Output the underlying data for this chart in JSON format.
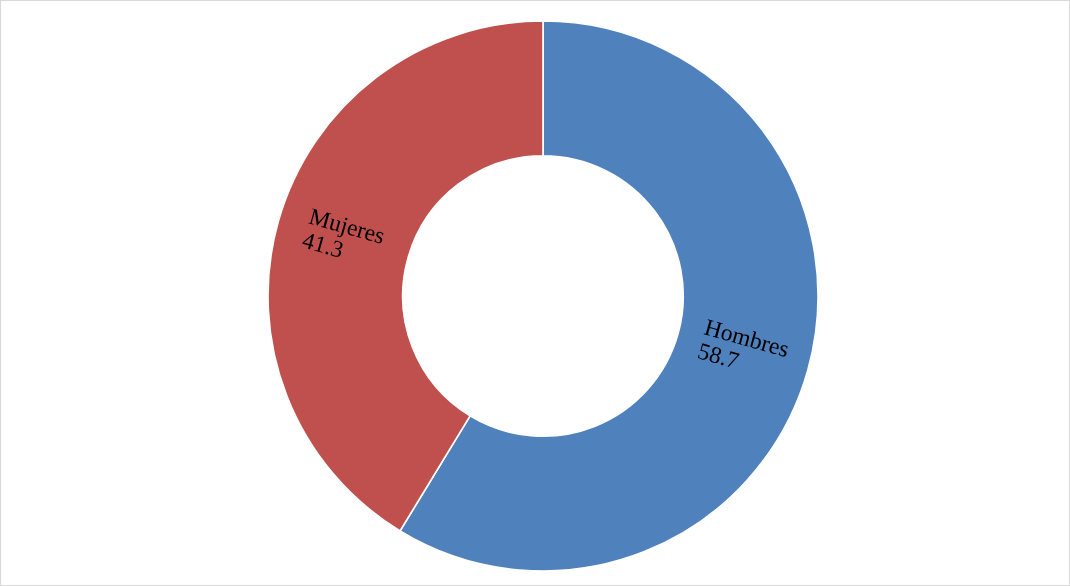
{
  "chart_data": {
    "type": "donut",
    "categories": [
      "Hombres",
      "Mujeres"
    ],
    "values": [
      58.7,
      41.3
    ],
    "colors": [
      "#4f81bd",
      "#c0504d"
    ],
    "data_labels": true
  }
}
